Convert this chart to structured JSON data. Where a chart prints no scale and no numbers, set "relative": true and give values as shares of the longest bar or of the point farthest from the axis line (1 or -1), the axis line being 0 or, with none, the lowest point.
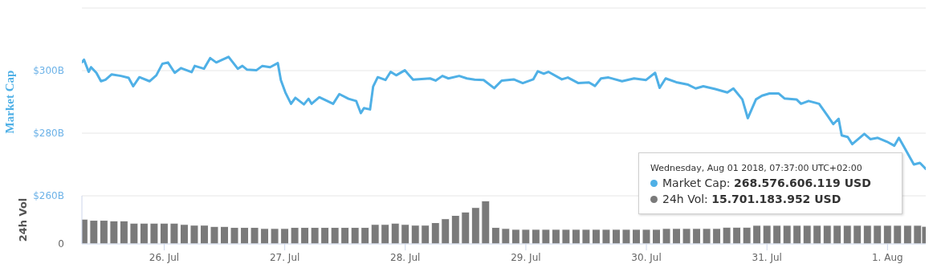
{
  "chart_data": [
    {
      "type": "line",
      "ylabel": "Market Cap",
      "tick_labels": "y",
      "grid": "y",
      "xlim": [
        "2018-07-25T07:37",
        "2018-08-01T07:37"
      ],
      "ylim": [
        260,
        320
      ],
      "yticks": [
        {
          "value": 260,
          "label": "$260B"
        },
        {
          "value": 280,
          "label": "$280B"
        },
        {
          "value": 300,
          "label": "$300B"
        },
        {
          "value": 320,
          "label": null
        }
      ],
      "x": [
        "2018-07-25T07:37",
        "2018-07-25T08:02",
        "2018-07-25T08:58",
        "2018-07-25T09:26",
        "2018-07-25T10:30",
        "2018-07-25T11:25",
        "2018-07-25T12:19",
        "2018-07-25T13:33",
        "2018-07-25T15:23",
        "2018-07-25T16:55",
        "2018-07-25T17:50",
        "2018-07-25T19:04",
        "2018-07-25T21:05",
        "2018-07-25T22:26",
        "2018-07-25T23:39",
        "2018-07-26T00:45",
        "2018-07-26T02:06",
        "2018-07-26T03:20",
        "2018-07-26T05:28",
        "2018-07-26T06:05",
        "2018-07-26T07:55",
        "2018-07-26T09:09",
        "2018-07-26T10:22",
        "2018-07-26T12:49",
        "2018-07-26T14:39",
        "2018-07-26T15:34",
        "2018-07-26T16:30",
        "2018-07-26T18:20",
        "2018-07-26T19:33",
        "2018-07-26T21:05",
        "2018-07-26T22:37",
        "2018-07-26T23:14",
        "2018-07-27T00:08",
        "2018-07-27T01:15",
        "2018-07-27T02:07",
        "2018-07-27T03:49",
        "2018-07-27T04:44",
        "2018-07-27T05:20",
        "2018-07-27T06:53",
        "2018-07-27T09:38",
        "2018-07-27T10:52",
        "2018-07-27T12:42",
        "2018-07-27T14:13",
        "2018-07-27T15:09",
        "2018-07-27T15:46",
        "2018-07-27T16:59",
        "2018-07-27T17:36",
        "2018-07-27T18:31",
        "2018-07-27T20:03",
        "2018-07-27T21:05",
        "2018-07-27T22:11",
        "2018-07-27T23:54",
        "2018-07-28T01:33",
        "2018-07-28T04:56",
        "2018-07-28T06:02",
        "2018-07-28T07:23",
        "2018-07-28T08:35",
        "2018-07-28T10:44",
        "2018-07-28T12:16",
        "2018-07-28T13:49",
        "2018-07-28T15:36",
        "2018-07-28T17:42",
        "2018-07-28T19:11",
        "2018-07-28T21:35",
        "2018-07-28T23:23",
        "2018-07-29T01:28",
        "2018-07-29T02:23",
        "2018-07-29T03:34",
        "2018-07-29T04:29",
        "2018-07-29T07:10",
        "2018-07-29T08:22",
        "2018-07-29T10:28",
        "2018-07-29T12:34",
        "2018-07-29T13:46",
        "2018-07-29T14:58",
        "2018-07-29T16:27",
        "2018-07-29T19:09",
        "2018-07-29T21:33",
        "2018-07-29T23:56",
        "2018-07-30T01:44",
        "2018-07-30T02:38",
        "2018-07-30T03:50",
        "2018-07-30T05:56",
        "2018-07-30T08:19",
        "2018-07-30T09:49",
        "2018-07-30T11:20",
        "2018-07-30T13:43",
        "2018-07-30T16:07",
        "2018-07-30T17:19",
        "2018-07-30T19:06",
        "2018-07-30T20:11",
        "2018-07-30T21:49",
        "2018-07-30T23:01",
        "2018-07-31T00:30",
        "2018-07-31T02:18",
        "2018-07-31T03:29",
        "2018-07-31T05:53",
        "2018-07-31T06:47",
        "2018-07-31T08:17",
        "2018-07-31T10:23",
        "2018-07-31T11:53",
        "2018-07-31T13:12",
        "2018-07-31T14:16",
        "2018-07-31T14:53",
        "2018-07-31T16:05",
        "2018-07-31T16:59",
        "2018-07-31T19:23",
        "2018-07-31T20:35",
        "2018-07-31T22:04",
        "2018-07-31T23:52",
        "2018-08-01T01:22",
        "2018-08-01T02:16",
        "2018-08-01T03:09",
        "2018-08-01T05:15",
        "2018-08-01T06:27",
        "2018-08-01T07:37"
      ],
      "series": [
        {
          "color": "#4fb0e6",
          "values": [
            302.7,
            303.5,
            299.6,
            301.1,
            299.3,
            296.6,
            297.1,
            298.8,
            298.3,
            297.7,
            295.0,
            297.9,
            296.6,
            298.5,
            302.2,
            302.6,
            299.3,
            300.8,
            299.5,
            301.5,
            300.6,
            304.0,
            302.6,
            304.4,
            300.6,
            301.5,
            300.3,
            300.1,
            301.5,
            301.1,
            302.4,
            296.9,
            293.0,
            289.4,
            291.3,
            289.2,
            291.0,
            289.4,
            291.5,
            289.4,
            292.5,
            291.0,
            290.3,
            286.4,
            288.0,
            287.6,
            294.9,
            297.9,
            297.0,
            299.6,
            298.5,
            300.1,
            297.1,
            297.5,
            296.8,
            298.3,
            297.5,
            298.3,
            297.5,
            297.1,
            297.0,
            294.4,
            296.8,
            297.2,
            296.0,
            297.2,
            299.8,
            299.0,
            299.6,
            297.2,
            297.8,
            296.0,
            296.2,
            295.1,
            297.5,
            297.8,
            296.6,
            297.5,
            297.0,
            299.3,
            294.5,
            297.5,
            296.3,
            295.5,
            294.3,
            295.0,
            294.1,
            293.0,
            294.3,
            290.8,
            284.8,
            290.8,
            292.0,
            292.7,
            292.7,
            291.1,
            290.8,
            289.4,
            290.3,
            289.4,
            286.0,
            282.9,
            284.6,
            279.3,
            278.8,
            276.5,
            279.8,
            278.1,
            278.5,
            277.3,
            276.0,
            278.5,
            276.0,
            270.0,
            270.5,
            268.6
          ]
        }
      ],
      "annotations": [
        "Wednesday, Aug 01 2018, 07:37:00 UTC+02:00",
        "Market Cap: 268.576.606.119 USD"
      ]
    },
    {
      "type": "bar",
      "ylabel": "24h Vol",
      "relative": true,
      "xlim": [
        "2018-07-25T07:37",
        "2018-08-01T07:37"
      ],
      "xticks": [
        {
          "value": "2018-07-26",
          "label": "26. Jul"
        },
        {
          "value": "2018-07-27",
          "label": "27. Jul"
        },
        {
          "value": "2018-07-28",
          "label": "28. Jul"
        },
        {
          "value": "2018-07-29",
          "label": "29. Jul"
        },
        {
          "value": "2018-07-30",
          "label": "30. Jul"
        },
        {
          "value": "2018-07-31",
          "label": "31. Jul"
        },
        {
          "value": "2018-08-01",
          "label": "1. Aug"
        }
      ],
      "x": [
        "2018-07-25T08:00",
        "2018-07-25T10:00",
        "2018-07-25T12:00",
        "2018-07-25T14:00",
        "2018-07-25T16:00",
        "2018-07-25T18:00",
        "2018-07-25T20:00",
        "2018-07-25T22:00",
        "2018-07-26T00:00",
        "2018-07-26T02:00",
        "2018-07-26T04:00",
        "2018-07-26T06:00",
        "2018-07-26T08:00",
        "2018-07-26T10:00",
        "2018-07-26T12:00",
        "2018-07-26T14:00",
        "2018-07-26T16:00",
        "2018-07-26T18:00",
        "2018-07-26T20:00",
        "2018-07-26T22:00",
        "2018-07-27T00:00",
        "2018-07-27T02:00",
        "2018-07-27T04:00",
        "2018-07-27T06:00",
        "2018-07-27T08:00",
        "2018-07-27T10:00",
        "2018-07-27T12:00",
        "2018-07-27T14:00",
        "2018-07-27T16:00",
        "2018-07-27T18:00",
        "2018-07-27T20:00",
        "2018-07-27T22:00",
        "2018-07-28T00:00",
        "2018-07-28T02:00",
        "2018-07-28T04:00",
        "2018-07-28T06:00",
        "2018-07-28T08:00",
        "2018-07-28T10:00",
        "2018-07-28T12:00",
        "2018-07-28T14:00",
        "2018-07-28T16:00",
        "2018-07-28T18:00",
        "2018-07-28T20:00",
        "2018-07-28T22:00",
        "2018-07-29T00:00",
        "2018-07-29T02:00",
        "2018-07-29T04:00",
        "2018-07-29T06:00",
        "2018-07-29T08:00",
        "2018-07-29T10:00",
        "2018-07-29T12:00",
        "2018-07-29T14:00",
        "2018-07-29T16:00",
        "2018-07-29T18:00",
        "2018-07-29T20:00",
        "2018-07-29T22:00",
        "2018-07-30T00:00",
        "2018-07-30T02:00",
        "2018-07-30T04:00",
        "2018-07-30T06:00",
        "2018-07-30T08:00",
        "2018-07-30T10:00",
        "2018-07-30T12:00",
        "2018-07-30T14:00",
        "2018-07-30T16:00",
        "2018-07-30T18:00",
        "2018-07-30T20:00",
        "2018-07-30T22:00",
        "2018-07-31T00:00",
        "2018-07-31T02:00",
        "2018-07-31T04:00",
        "2018-07-31T06:00",
        "2018-07-31T08:00",
        "2018-07-31T10:00",
        "2018-07-31T12:00",
        "2018-07-31T14:00",
        "2018-07-31T16:00",
        "2018-07-31T18:00",
        "2018-07-31T20:00",
        "2018-07-31T22:00",
        "2018-08-01T00:00",
        "2018-08-01T02:00",
        "2018-08-01T04:00",
        "2018-08-01T06:00",
        "2018-08-01T07:37"
      ],
      "series": [
        {
          "color": "#7a7a7a",
          "values": [
            0.574,
            0.548,
            0.548,
            0.535,
            0.535,
            0.481,
            0.481,
            0.481,
            0.481,
            0.481,
            0.452,
            0.434,
            0.434,
            0.405,
            0.405,
            0.384,
            0.384,
            0.384,
            0.358,
            0.358,
            0.358,
            0.384,
            0.384,
            0.384,
            0.384,
            0.384,
            0.384,
            0.384,
            0.384,
            0.452,
            0.452,
            0.481,
            0.452,
            0.434,
            0.434,
            0.494,
            0.584,
            0.662,
            0.74,
            0.844,
            1,
            0.384,
            0.358,
            0.338,
            0.338,
            0.338,
            0.338,
            0.338,
            0.338,
            0.338,
            0.338,
            0.338,
            0.338,
            0.338,
            0.338,
            0.338,
            0.338,
            0.338,
            0.358,
            0.358,
            0.358,
            0.358,
            0.358,
            0.358,
            0.387,
            0.387,
            0.387,
            0.431,
            0.431,
            0.431,
            0.431,
            0.431,
            0.431,
            0.431,
            0.431,
            0.431,
            0.431,
            0.431,
            0.431,
            0.431,
            0.431,
            0.431,
            0.431,
            0.431,
            0.408
          ]
        }
      ],
      "annotations": [
        "0",
        "24h Vol: 15.701.183.952 USD"
      ]
    }
  ]
}
